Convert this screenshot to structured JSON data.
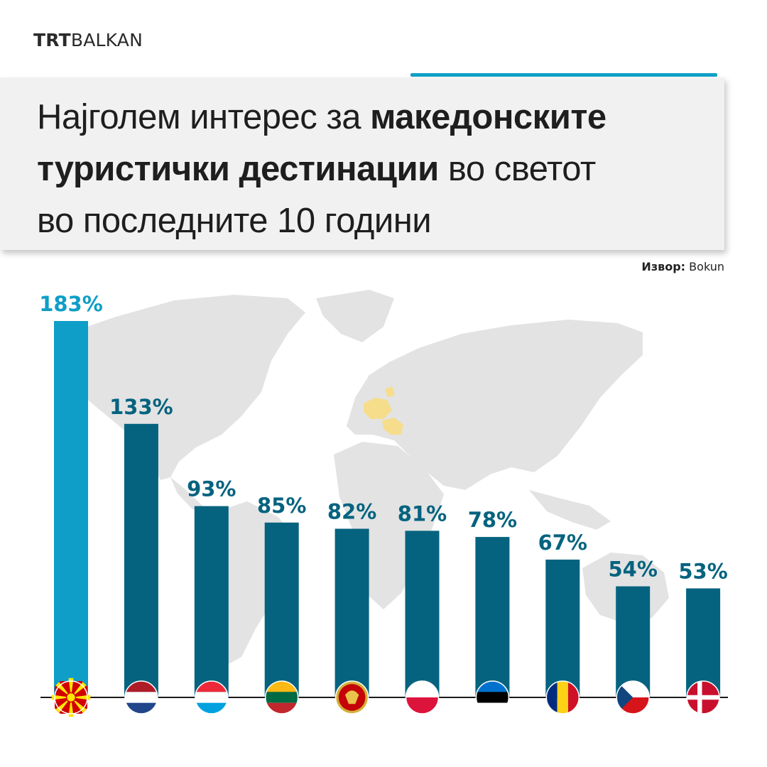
{
  "brand": {
    "trt": "TRT",
    "balkan": "BALKAN"
  },
  "title": {
    "line1_regular": "Најголем интерес за ",
    "line1_bold": "македонските",
    "line2_bold": "туристички дестинации",
    "line2_regular": " во светот",
    "line3_regular": "во последните 10 години"
  },
  "source": {
    "label": "Извор:",
    "value": "Bokun"
  },
  "colors": {
    "highlight": "#0f9ec7",
    "bar": "#05637f",
    "map": "#e3e3e3",
    "europe": "#f6dd8c",
    "accent": "#0fa0c7"
  },
  "chart_data": {
    "type": "bar",
    "categories": [
      "north-macedonia-flag",
      "netherlands-flag",
      "luxembourg-flag",
      "lithuania-flag",
      "montenegro-flag",
      "poland-flag",
      "estonia-flag",
      "romania-flag",
      "czechia-flag",
      "denmark-flag"
    ],
    "values": [
      183,
      133,
      93,
      85,
      82,
      81,
      78,
      67,
      54,
      53
    ],
    "value_labels": [
      "183%",
      "133%",
      "93%",
      "85%",
      "82%",
      "81%",
      "78%",
      "67%",
      "54%",
      "53%"
    ],
    "ylim": [
      0,
      200
    ],
    "highlight_index": 0,
    "grid": false,
    "legend": "none"
  }
}
